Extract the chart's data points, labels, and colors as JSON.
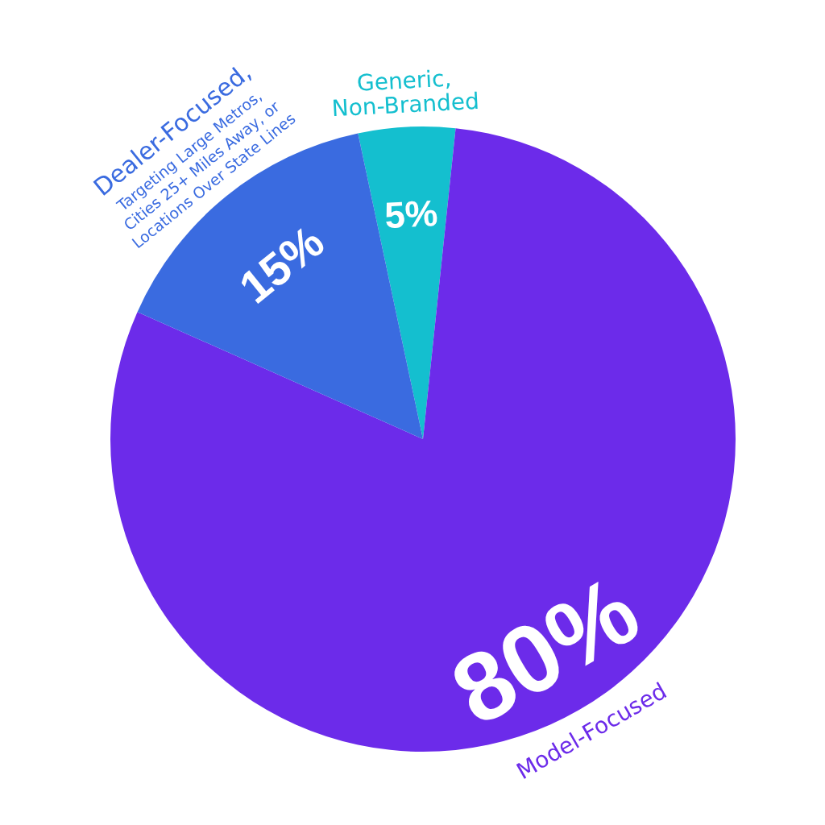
{
  "chart_data": {
    "type": "pie",
    "categories": [
      "Generic,\nNon-Branded",
      "Model-Focused",
      "Dealer-Focused,\nTargeting Large Metros,\nCities 25+ Miles Away, or\nLocations Over State Lines"
    ],
    "values": [
      5,
      80,
      15
    ],
    "value_labels": [
      "5%",
      "80%",
      "15%"
    ],
    "colors": [
      "#14bfcf",
      "#6c2bea",
      "#3a6be0"
    ]
  }
}
